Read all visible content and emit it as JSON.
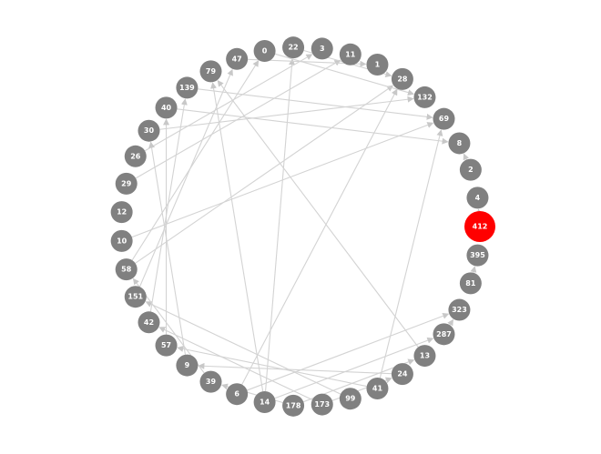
{
  "graph": {
    "type": "directed-network",
    "layout": "circular",
    "colors": {
      "node": "#808080",
      "highlight": "#ff0000",
      "edge": "#d3d3d3",
      "label": "#ffffff"
    },
    "highlighted": [
      "412"
    ],
    "nodes": [
      "412",
      "4",
      "2",
      "8",
      "69",
      "132",
      "28",
      "1",
      "11",
      "3",
      "22",
      "0",
      "47",
      "79",
      "139",
      "40",
      "30",
      "26",
      "29",
      "12",
      "10",
      "58",
      "151",
      "42",
      "57",
      "9",
      "39",
      "6",
      "14",
      "178",
      "173",
      "99",
      "41",
      "24",
      "13",
      "287",
      "323",
      "81",
      "395"
    ],
    "edges": [
      [
        "412",
        "4"
      ],
      [
        "14",
        "22"
      ],
      [
        "14",
        "79"
      ],
      [
        "6",
        "28"
      ],
      [
        "41",
        "69"
      ],
      [
        "13",
        "79"
      ],
      [
        "99",
        "151"
      ],
      [
        "173",
        "42"
      ],
      [
        "41",
        "57"
      ],
      [
        "24",
        "9"
      ],
      [
        "178",
        "39"
      ],
      [
        "178",
        "13"
      ],
      [
        "10",
        "69"
      ],
      [
        "58",
        "28"
      ],
      [
        "26",
        "3"
      ],
      [
        "40",
        "8"
      ],
      [
        "30",
        "132"
      ],
      [
        "29",
        "11"
      ],
      [
        "47",
        "1"
      ],
      [
        "0",
        "132"
      ],
      [
        "139",
        "69"
      ],
      [
        "22",
        "28"
      ],
      [
        "58",
        "0"
      ],
      [
        "151",
        "47"
      ],
      [
        "42",
        "139"
      ],
      [
        "57",
        "40"
      ],
      [
        "9",
        "30"
      ],
      [
        "39",
        "58"
      ],
      [
        "14",
        "287"
      ],
      [
        "6",
        "323"
      ],
      [
        "173",
        "24"
      ],
      [
        "287",
        "323"
      ],
      [
        "81",
        "395"
      ],
      [
        "2",
        "8"
      ]
    ]
  }
}
